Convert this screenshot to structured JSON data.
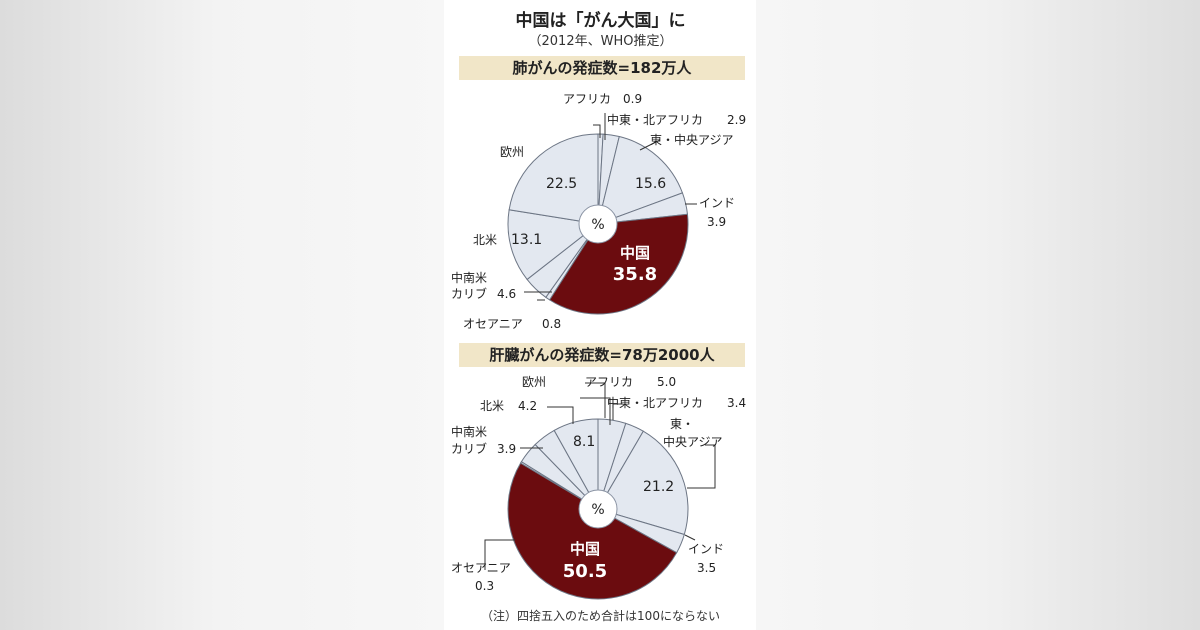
{
  "title": "中国は「がん大国」に",
  "subtitle": "（2012年、WHO推定）",
  "note": "（注）四捨五入のため合計は100にならない",
  "chart_data": [
    {
      "type": "pie",
      "title": "肺がんの発症数=182万人",
      "center_label": "%",
      "highlight_color": "#6b0c0f",
      "slice_color": "#e3e8f0",
      "slices": [
        {
          "name": "アフリカ",
          "value": 0.9,
          "value_label": "0.9"
        },
        {
          "name": "中東・北アフリカ",
          "value": 2.9,
          "value_label": "2.9"
        },
        {
          "name": "東・中央アジア",
          "value": 15.6,
          "value_label": "15.6"
        },
        {
          "name": "インド",
          "value": 3.9,
          "value_label": "3.9"
        },
        {
          "name": "中国",
          "value": 35.8,
          "value_label": "35.8",
          "highlight": true
        },
        {
          "name": "オセアニア",
          "value": 0.8,
          "value_label": "0.8"
        },
        {
          "name": "中南米カリブ",
          "value": 4.6,
          "value_label": "4.6"
        },
        {
          "name": "北米",
          "value": 13.1,
          "value_label": "13.1"
        },
        {
          "name": "欧州",
          "value": 22.5,
          "value_label": "22.5"
        }
      ]
    },
    {
      "type": "pie",
      "title": "肝臓がんの発症数=78万2000人",
      "center_label": "%",
      "highlight_color": "#6b0c0f",
      "slice_color": "#e3e8f0",
      "slices": [
        {
          "name": "アフリカ",
          "value": 5.0,
          "value_label": "5.0"
        },
        {
          "name": "中東・北アフリカ",
          "value": 3.4,
          "value_label": "3.4"
        },
        {
          "name": "東・中央アジア",
          "value": 21.2,
          "value_label": "21.2"
        },
        {
          "name": "インド",
          "value": 3.5,
          "value_label": "3.5"
        },
        {
          "name": "中国",
          "value": 50.5,
          "value_label": "50.5",
          "highlight": true
        },
        {
          "name": "オセアニア",
          "value": 0.3,
          "value_label": "0.3"
        },
        {
          "name": "中南米カリブ",
          "value": 3.9,
          "value_label": "3.9"
        },
        {
          "name": "北米",
          "value": 4.2,
          "value_label": "4.2"
        },
        {
          "name": "欧州",
          "value": 8.1,
          "value_label": "8.1"
        }
      ]
    }
  ]
}
